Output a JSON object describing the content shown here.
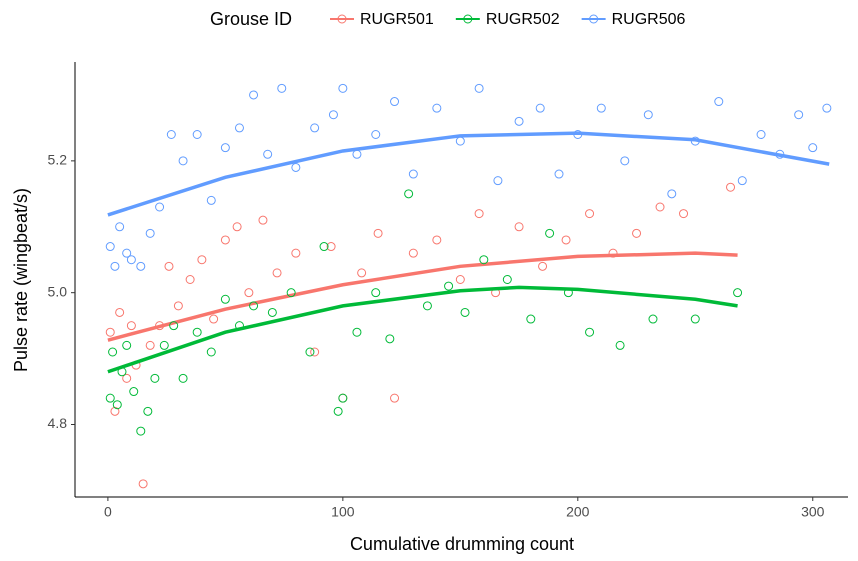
{
  "chart_data": {
    "type": "scatter",
    "x_label": "Cumulative drumming count",
    "y_label": "Pulse rate (wingbeat/s)",
    "legend_title": "Grouse ID",
    "legend_position": "top",
    "grid": false,
    "xlim": [
      -14,
      315
    ],
    "ylim": [
      4.69,
      5.35
    ],
    "xticks": [
      0,
      100,
      200,
      300
    ],
    "yticks": [
      4.8,
      {
        "value": 5,
        "label": "5.0"
      },
      5.2
    ],
    "series": [
      {
        "name": "RUGR501",
        "color": "#F8766D",
        "x": [
          1,
          3,
          5,
          8,
          10,
          12,
          15,
          18,
          22,
          26,
          30,
          35,
          40,
          45,
          50,
          55,
          60,
          66,
          72,
          80,
          88,
          95,
          100,
          108,
          115,
          122,
          130,
          140,
          150,
          158,
          165,
          175,
          185,
          195,
          205,
          215,
          225,
          235,
          245,
          265
        ],
        "values": [
          4.94,
          4.82,
          4.97,
          4.87,
          4.95,
          4.89,
          4.71,
          4.92,
          4.95,
          5.04,
          4.98,
          5.02,
          5.05,
          4.96,
          5.08,
          5.1,
          5.0,
          5.11,
          5.03,
          5.06,
          4.91,
          5.07,
          4.84,
          5.03,
          5.09,
          4.84,
          5.06,
          5.08,
          5.02,
          5.12,
          5.0,
          5.1,
          5.04,
          5.08,
          5.12,
          5.06,
          5.09,
          5.13,
          5.12,
          5.16
        ],
        "fit_x": [
          0,
          50,
          100,
          150,
          200,
          250,
          268
        ],
        "fit_values": [
          4.928,
          4.975,
          5.012,
          5.04,
          5.055,
          5.06,
          5.057
        ]
      },
      {
        "name": "RUGR502",
        "color": "#00BA38",
        "x": [
          1,
          2,
          4,
          6,
          8,
          11,
          14,
          17,
          20,
          24,
          28,
          32,
          38,
          44,
          50,
          56,
          62,
          70,
          78,
          86,
          92,
          98,
          100,
          106,
          114,
          120,
          128,
          136,
          145,
          152,
          160,
          170,
          180,
          188,
          196,
          205,
          218,
          232,
          250,
          268
        ],
        "values": [
          4.84,
          4.91,
          4.83,
          4.88,
          4.92,
          4.85,
          4.79,
          4.82,
          4.87,
          4.92,
          4.95,
          4.87,
          4.94,
          4.91,
          4.99,
          4.95,
          4.98,
          4.97,
          5.0,
          4.91,
          5.07,
          4.82,
          4.84,
          4.94,
          5.0,
          4.93,
          5.15,
          4.98,
          5.01,
          4.97,
          5.05,
          5.02,
          4.96,
          5.09,
          5.0,
          4.94,
          4.92,
          4.96,
          4.96,
          5.0
        ],
        "fit_x": [
          0,
          50,
          100,
          150,
          175,
          200,
          250,
          268
        ],
        "fit_values": [
          4.88,
          4.94,
          4.98,
          5.003,
          5.008,
          5.005,
          4.99,
          4.98
        ]
      },
      {
        "name": "RUGR506",
        "color": "#619CFF",
        "x": [
          1,
          3,
          5,
          8,
          10,
          14,
          18,
          22,
          27,
          32,
          38,
          44,
          50,
          56,
          62,
          68,
          74,
          80,
          88,
          96,
          100,
          106,
          114,
          122,
          130,
          140,
          150,
          158,
          166,
          175,
          184,
          192,
          200,
          210,
          220,
          230,
          240,
          250,
          260,
          270,
          278,
          286,
          294,
          300,
          306
        ],
        "values": [
          5.07,
          5.04,
          5.1,
          5.06,
          5.05,
          5.04,
          5.09,
          5.13,
          5.24,
          5.2,
          5.24,
          5.14,
          5.22,
          5.25,
          5.3,
          5.21,
          5.31,
          5.19,
          5.25,
          5.27,
          5.31,
          5.21,
          5.24,
          5.29,
          5.18,
          5.28,
          5.23,
          5.31,
          5.17,
          5.26,
          5.28,
          5.18,
          5.24,
          5.28,
          5.2,
          5.27,
          5.15,
          5.23,
          5.29,
          5.17,
          5.24,
          5.21,
          5.27,
          5.22,
          5.28
        ],
        "fit_x": [
          0,
          50,
          100,
          150,
          200,
          250,
          307
        ],
        "fit_values": [
          5.118,
          5.175,
          5.215,
          5.238,
          5.242,
          5.232,
          5.195
        ]
      }
    ]
  }
}
